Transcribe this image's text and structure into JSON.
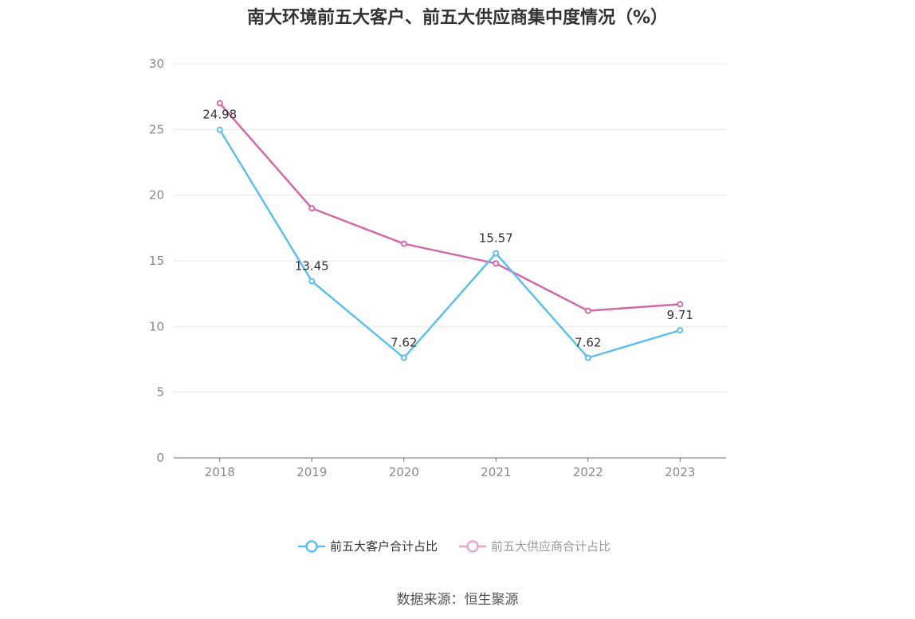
{
  "source_text": "数据来源：恒生聚源",
  "chart_data": {
    "type": "line",
    "title": "南大环境前五大客户、前五大供应商集中度情况（%）",
    "x": [
      "2018",
      "2019",
      "2020",
      "2021",
      "2022",
      "2023"
    ],
    "ylim": [
      0,
      30
    ],
    "yticks": [
      0,
      5,
      10,
      15,
      20,
      25,
      30
    ],
    "grid": true,
    "legend_position": "bottom",
    "series": [
      {
        "name": "前五大客户合计占比",
        "color": "#5bc0f0",
        "values": [
          24.98,
          13.45,
          7.62,
          15.57,
          7.62,
          9.71
        ],
        "labels": [
          "24.98",
          "13.45",
          "7.62",
          "15.57",
          "7.62",
          "9.71"
        ]
      },
      {
        "name": "前五大供应商合计占比",
        "color": "#d26aa8",
        "legend_color": "#e8a7cf",
        "values": [
          27.0,
          19.0,
          16.3,
          14.8,
          11.2,
          11.7
        ]
      }
    ]
  }
}
